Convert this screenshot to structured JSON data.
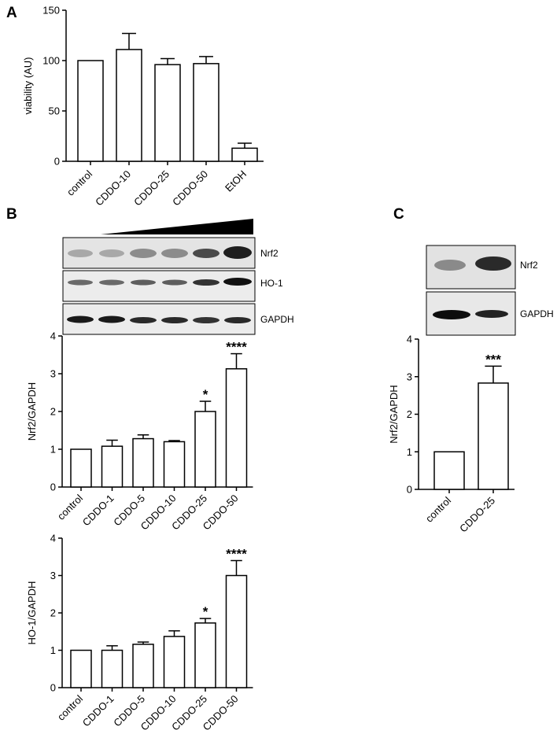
{
  "figure": {
    "panel_labels": [
      "A",
      "B",
      "C"
    ],
    "blots": {
      "B": [
        "Nrf2",
        "HO-1",
        "GAPDH"
      ],
      "C": [
        "Nrf2",
        "GAPDH"
      ]
    }
  },
  "chart_data": [
    {
      "id": "A",
      "type": "bar",
      "title": "",
      "xlabel": "",
      "ylabel": "viability (AU)",
      "categories": [
        "control",
        "CDDO-10",
        "CDDO-25",
        "CDDO-50",
        "EtOH"
      ],
      "values": [
        100,
        111,
        96,
        97,
        13
      ],
      "errors": [
        0,
        16,
        6,
        7,
        5
      ],
      "annotations": [
        "",
        "",
        "",
        "",
        ""
      ],
      "ylim": [
        0,
        150
      ],
      "yticks": [
        0,
        50,
        100,
        150
      ],
      "grid": false
    },
    {
      "id": "B1",
      "type": "bar",
      "title": "",
      "xlabel": "",
      "ylabel": "Nrf2/GAPDH",
      "categories": [
        "control",
        "CDDO-1",
        "CDDO-5",
        "CDDO-10",
        "CDDO-25",
        "CDDO-50"
      ],
      "values": [
        1.0,
        1.08,
        1.28,
        1.2,
        2.0,
        3.13
      ],
      "errors": [
        0,
        0.16,
        0.1,
        0.03,
        0.27,
        0.4
      ],
      "annotations": [
        "",
        "",
        "",
        "",
        "*",
        "****"
      ],
      "ylim": [
        0,
        4
      ],
      "yticks": [
        0,
        1,
        2,
        3,
        4
      ],
      "grid": false
    },
    {
      "id": "B2",
      "type": "bar",
      "title": "",
      "xlabel": "",
      "ylabel": "HO-1/GAPDH",
      "categories": [
        "control",
        "CDDO-1",
        "CDDO-5",
        "CDDO-10",
        "CDDO-25",
        "CDDO-50"
      ],
      "values": [
        1.0,
        1.0,
        1.16,
        1.37,
        1.73,
        3.0
      ],
      "errors": [
        0,
        0.12,
        0.06,
        0.15,
        0.12,
        0.4
      ],
      "annotations": [
        "",
        "",
        "",
        "",
        "*",
        "****"
      ],
      "ylim": [
        0,
        4
      ],
      "yticks": [
        0,
        1,
        2,
        3,
        4
      ],
      "grid": false
    },
    {
      "id": "C",
      "type": "bar",
      "title": "",
      "xlabel": "",
      "ylabel": "Nrf2/GAPDH",
      "categories": [
        "control",
        "CDDO-25"
      ],
      "values": [
        1.0,
        2.83
      ],
      "errors": [
        0,
        0.45
      ],
      "annotations": [
        "",
        "***"
      ],
      "ylim": [
        0,
        4
      ],
      "yticks": [
        0,
        1,
        2,
        3,
        4
      ],
      "grid": false
    }
  ]
}
